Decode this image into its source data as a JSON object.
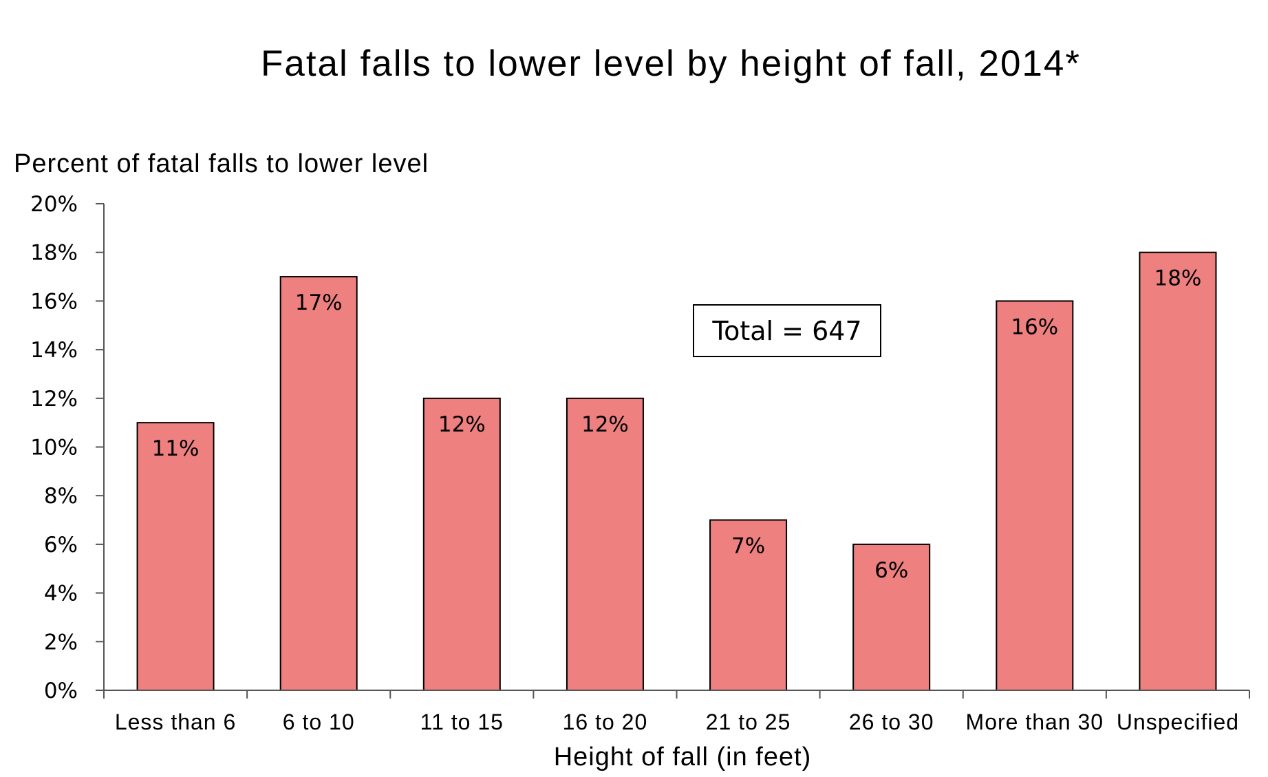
{
  "chart_data": {
    "type": "bar",
    "title": "Fatal falls to lower level by height of fall, 2014*",
    "ylabel": "Percent of fatal falls to lower level",
    "xlabel": "Height of fall (in feet)",
    "categories": [
      "Less than 6",
      "6 to 10",
      "11 to 15",
      "16 to 20",
      "21 to 25",
      "26 to 30",
      "More than 30",
      "Unspecified"
    ],
    "values": [
      11,
      17,
      12,
      12,
      7,
      6,
      16,
      18
    ],
    "data_labels": [
      "11%",
      "17%",
      "12%",
      "12%",
      "7%",
      "6%",
      "16%",
      "18%"
    ],
    "ylim": [
      0,
      20
    ],
    "yticks": [
      0,
      2,
      4,
      6,
      8,
      10,
      12,
      14,
      16,
      18,
      20
    ],
    "ytick_labels": [
      "0%",
      "2%",
      "4%",
      "6%",
      "8%",
      "10%",
      "12%",
      "14%",
      "16%",
      "18%",
      "20%"
    ],
    "annotation": "Total = 647",
    "bar_color": "#ee8080",
    "grid": false,
    "legend": "none"
  }
}
